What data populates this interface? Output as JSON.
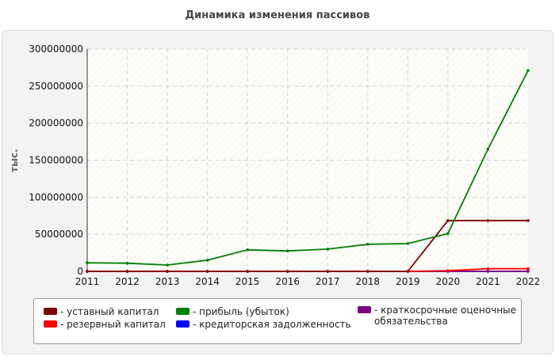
{
  "chart_data": {
    "type": "line",
    "title": "Динамика изменения пассивов",
    "ylabel": "тыс.",
    "xlabel": "",
    "x": [
      "2011",
      "2012",
      "2013",
      "2014",
      "2015",
      "2016",
      "2017",
      "2018",
      "2019",
      "2020",
      "2021",
      "2022"
    ],
    "ylim": [
      0,
      300000000
    ],
    "yticks": [
      "0",
      "50000000",
      "100000000",
      "150000000",
      "200000000",
      "250000000",
      "300000000"
    ],
    "grid": true,
    "legend_position": "bottom",
    "series": [
      {
        "name": "уставный капитал",
        "color": "#800000",
        "values": [
          0,
          0,
          0,
          0,
          0,
          0,
          0,
          0,
          0,
          68500000,
          68500000,
          68500000
        ]
      },
      {
        "name": "резервный капитал",
        "color": "#ff0000",
        "values": [
          0,
          0,
          0,
          0,
          0,
          0,
          0,
          0,
          0,
          1000000,
          3500000,
          3500000
        ]
      },
      {
        "name": "прибыль (убыток)",
        "color": "#008000",
        "values": [
          11500000,
          11000000,
          8500000,
          15000000,
          29000000,
          27500000,
          30000000,
          36500000,
          37500000,
          51000000,
          165000000,
          271000000
        ]
      },
      {
        "name": "кредиторская задолженность",
        "color": "#0000ff",
        "values": [
          0,
          0,
          0,
          0,
          0,
          0,
          0,
          0,
          0,
          0,
          0,
          0
        ]
      },
      {
        "name": "краткосрочные оценочные\nобязательства",
        "color": "#800080",
        "values": [
          0,
          0,
          0,
          0,
          0,
          0,
          0,
          0,
          0,
          0,
          0,
          0
        ]
      }
    ]
  }
}
